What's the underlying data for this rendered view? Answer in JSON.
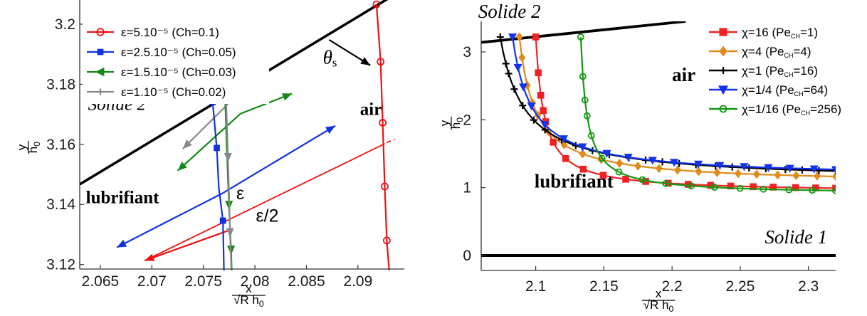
{
  "chart_data": [
    {
      "type": "line",
      "xlim": [
        2.063,
        2.0945
      ],
      "ylim": [
        3.1185,
        3.209
      ],
      "xticks": [
        2.065,
        2.07,
        2.075,
        2.08,
        2.085,
        2.09
      ],
      "xticklabels": [
        "2.065",
        "2.07",
        "2.075",
        "2.08",
        "2.085",
        "2.09"
      ],
      "yticks": [
        3.12,
        3.14,
        3.16,
        3.18,
        3.2
      ],
      "yticklabels": [
        "3.12",
        "3.14",
        "3.16",
        "3.18",
        "3.2"
      ],
      "xlabel": {
        "num": "x",
        "den": "√R h",
        "sub": "0"
      },
      "ylabel": {
        "num": "y",
        "den": "h",
        "sub": "0"
      },
      "legend_position": "top-left",
      "series": [
        {
          "name": "ε=5.10⁻⁵ (Ch=0.1)",
          "color": "#ee1111",
          "marker": "circle",
          "x": [
            2.0918,
            2.0922,
            2.0924,
            2.0926,
            2.0928,
            2.0931,
            2.0934
          ],
          "y": [
            3.2066,
            3.1875,
            3.1672,
            3.146,
            3.128,
            3.115,
            3.1
          ],
          "marker_idx": [
            0,
            1,
            2,
            3,
            4
          ]
        },
        {
          "name": "ε=2.5.10⁻⁵ (Ch=0.05)",
          "color": "#1133dd",
          "marker": "square",
          "x": [
            2.0759,
            2.0763,
            2.0765,
            2.0769,
            2.0771
          ],
          "y": [
            3.1741,
            3.1588,
            3.1455,
            3.1346,
            3.1
          ],
          "marker_idx": [
            0,
            1,
            3
          ]
        },
        {
          "name": "ε=1.5.10⁻⁵ (Ch=0.03)",
          "color": "#118811",
          "marker": "triangle-left",
          "x": [
            2.0771,
            2.0773,
            2.0775,
            2.0777,
            2.0779
          ],
          "y": [
            3.1762,
            3.1563,
            3.1386,
            3.1237,
            3.1
          ],
          "marker_idx": [
            0,
            2,
            3
          ]
        },
        {
          "name": "ε=1.10⁻⁵ (Ch=0.02)",
          "color": "#888888",
          "marker": "plus",
          "x": [
            2.0772,
            2.0774,
            2.0776,
            2.0779
          ],
          "y": [
            3.1754,
            3.1545,
            3.1295,
            3.1
          ],
          "marker_idx": [
            0,
            1,
            2
          ]
        }
      ],
      "wall": {
        "x": [
          2.063,
          2.0933
        ],
        "y": [
          3.1467,
          3.2093
        ],
        "color": "#000000"
      },
      "interface": {
        "x": [
          2.0693,
          2.0936
        ],
        "y": [
          3.1213,
          3.1617
        ],
        "color": "#ee1111"
      },
      "arrows": [
        {
          "color": "#888888",
          "from": [
            2.0777,
            3.1745
          ],
          "to": [
            2.073,
            3.1585
          ]
        },
        {
          "color": "#118811",
          "from": [
            2.0786,
            3.1702
          ],
          "to": [
            2.0725,
            3.1512
          ]
        },
        {
          "color": "#118811",
          "from": [
            2.0786,
            3.1702
          ],
          "to": [
            2.0836,
            3.1769
          ]
        },
        {
          "color": "#1133dd",
          "from": [
            2.0769,
            3.1438
          ],
          "to": [
            2.0878,
            3.1662
          ]
        },
        {
          "color": "#1133dd",
          "from": [
            2.0769,
            3.1438
          ],
          "to": [
            2.0666,
            3.1257
          ]
        },
        {
          "color": "#ee1111",
          "from": [
            2.0775,
            3.1314
          ],
          "to": [
            2.0693,
            3.1213
          ]
        },
        {
          "color": "#000000",
          "from": [
            2.0872,
            3.1948
          ],
          "to": [
            2.0912,
            3.1863
          ]
        }
      ],
      "annotations": [
        {
          "text": "Solide 2",
          "style": "italic",
          "color": "#000000",
          "at": [
            2.0638,
            3.1714
          ],
          "size": 25
        },
        {
          "text": "lubrifiant",
          "style": "bold",
          "color": "#000000",
          "at": [
            2.0636,
            3.1404
          ],
          "size": 25
        },
        {
          "text": "air",
          "style": "bold",
          "color": "#000000",
          "at": [
            2.0902,
            3.1698
          ],
          "size": 25
        },
        {
          "text": "ε",
          "style": "plain",
          "color": "#1133dd",
          "at": [
            2.0782,
            3.1417
          ],
          "size": 25
        },
        {
          "text": "ε/2",
          "style": "plain",
          "color": "#ee1111",
          "at": [
            2.0801,
            3.1343
          ],
          "size": 25
        },
        {
          "text": "θ",
          "sub": "s",
          "style": "italic",
          "color": "#000000",
          "at": [
            2.0866,
            3.1868
          ],
          "size": 27
        }
      ]
    },
    {
      "type": "line",
      "xlim": [
        2.06,
        2.32
      ],
      "ylim": [
        -0.22,
        3.45
      ],
      "xticks": [
        2.1,
        2.15,
        2.2,
        2.25,
        2.3
      ],
      "xticklabels": [
        "2.1",
        "2.15",
        "2.2",
        "2.25",
        "2.3"
      ],
      "yticks": [
        0,
        1,
        2,
        3
      ],
      "yticklabels": [
        "0",
        "1",
        "2",
        "3"
      ],
      "xlabel": {
        "num": "x",
        "den": "√R h",
        "sub": "0"
      },
      "ylabel": {
        "num": "y",
        "den": "h",
        "sub": "0"
      },
      "legend_position": "top-right",
      "series": [
        {
          "name": "χ=16 (Pe",
          "name_sub": "CH",
          "name_tail": "=1)",
          "color": "#ee2222",
          "marker": "square",
          "x0": 2.1,
          "A": 0.93,
          "b": 0.014,
          "pts": 20
        },
        {
          "name": "χ=4 (Pe",
          "name_sub": "CH",
          "name_tail": "=4)",
          "color": "#e08a1a",
          "marker": "diamond",
          "x0": 2.088,
          "A": 1.06,
          "b": 0.0255,
          "pts": 21
        },
        {
          "name": "χ=1 (Pe",
          "name_sub": "CH",
          "name_tail": "=16)",
          "color": "#000000",
          "marker": "plus",
          "x0": 2.074,
          "A": 1.1,
          "b": 0.0382,
          "pts": 24
        },
        {
          "name": "χ=1/4 (Pe",
          "name_sub": "CH",
          "name_tail": "=64)",
          "color": "#1133ee",
          "marker": "triangle-down",
          "x0": 2.083,
          "A": 1.15,
          "b": 0.0296,
          "pts": 18
        },
        {
          "name": "χ=1/16 (Pe",
          "name_sub": "CH",
          "name_tail": "=256)",
          "color": "#119911",
          "marker": "circle",
          "x0": 2.133,
          "A": 0.9,
          "b": 0.0108,
          "pts": 16
        }
      ],
      "wall_top": {
        "x": [
          2.06,
          2.21
        ],
        "y": [
          3.14,
          3.45
        ]
      },
      "wall_bottom": {
        "y": 0
      },
      "annotations": [
        {
          "text": "Solide 2",
          "style": "italic",
          "at": [
            2.063,
            3.5
          ],
          "size": 27
        },
        {
          "text": "air",
          "style": "bold",
          "at": [
            2.2,
            2.57
          ],
          "size": 27
        },
        {
          "text": "lubrifiant",
          "style": "bold",
          "at": [
            2.099,
            1.0
          ],
          "size": 27
        },
        {
          "text": "Solide 1",
          "style": "italic",
          "at": [
            2.268,
            0.18
          ],
          "size": 27
        }
      ]
    }
  ]
}
